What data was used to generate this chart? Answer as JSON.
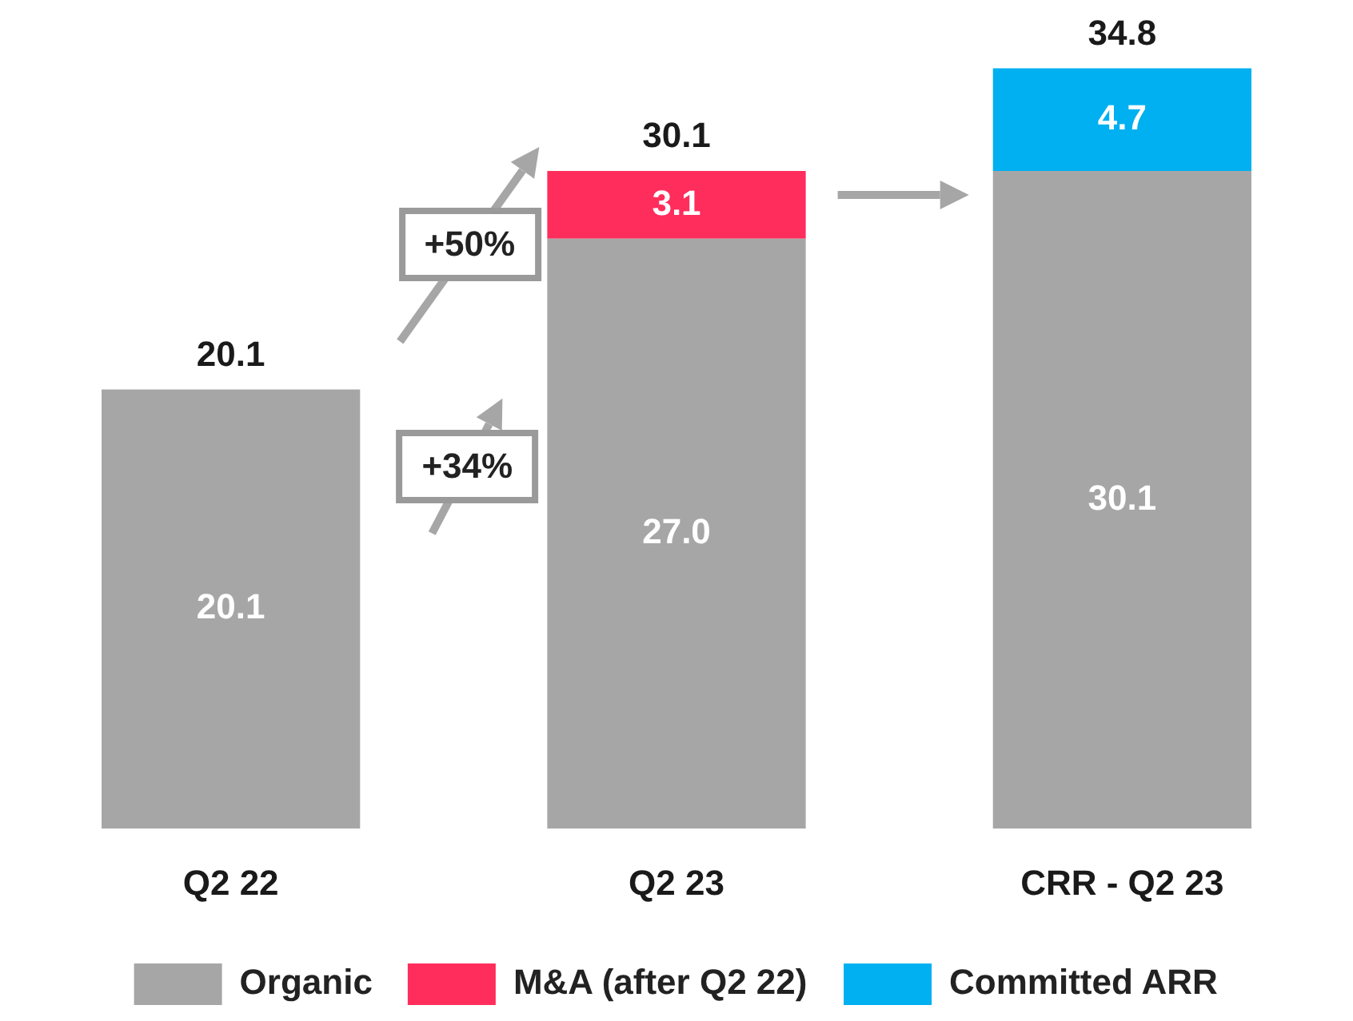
{
  "chart_data": {
    "type": "bar",
    "stacked": true,
    "categories": [
      "Q2 22",
      "Q2 23",
      "CRR - Q2 23"
    ],
    "series": [
      {
        "name": "Organic",
        "color": "#a6a6a6",
        "values": [
          20.1,
          27.0,
          30.1
        ],
        "value_labels": [
          "20.1",
          "27.0",
          "30.1"
        ]
      },
      {
        "name": "M&A (after Q2 22)",
        "color": "#ff2d5c",
        "values": [
          null,
          3.1,
          null
        ],
        "value_labels": [
          null,
          "3.1",
          null
        ]
      },
      {
        "name": "Committed ARR",
        "color": "#00b0f0",
        "values": [
          null,
          null,
          4.7
        ],
        "value_labels": [
          null,
          null,
          "4.7"
        ]
      }
    ],
    "totals": [
      "20.1",
      "30.1",
      "34.8"
    ],
    "legend": "bottom",
    "grid": false,
    "tick_labels": "x",
    "annotations": [
      "+50%",
      "+34%"
    ]
  }
}
